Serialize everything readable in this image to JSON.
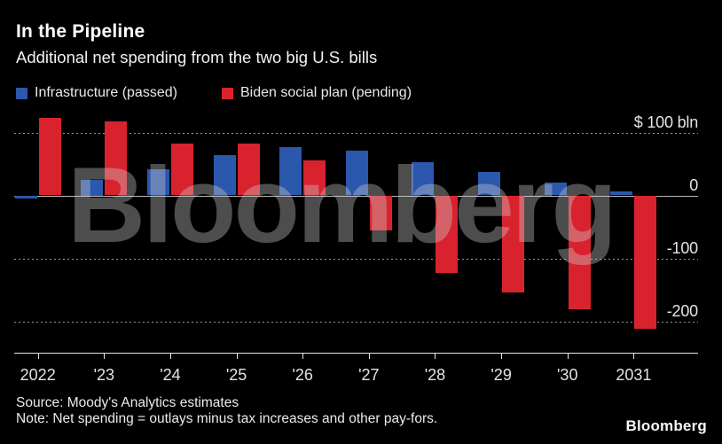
{
  "header": {
    "title": "In the Pipeline",
    "subtitle": "Additional net spending from the two big U.S. bills"
  },
  "legend": [
    {
      "label": "Infrastructure (passed)",
      "color": "#2b57ad"
    },
    {
      "label": "Biden social plan (pending)",
      "color": "#d8232e"
    }
  ],
  "chart_data": {
    "type": "bar",
    "title": "In the Pipeline",
    "subtitle": "Additional net spending from the two big U.S. bills",
    "unit": "$ bln",
    "categories": [
      "2022",
      "'23",
      "'24",
      "'25",
      "'26",
      "'27",
      "'28",
      "'29",
      "'30",
      "2031"
    ],
    "series": [
      {
        "name": "Infrastructure (passed)",
        "color": "#2b57ad",
        "values": [
          -5,
          25,
          42,
          64,
          77,
          71,
          53,
          38,
          21,
          6
        ]
      },
      {
        "name": "Biden social plan (pending)",
        "color": "#d8232e",
        "values": [
          123,
          117,
          83,
          82,
          56,
          -55,
          -123,
          -154,
          -181,
          -212
        ]
      }
    ],
    "y_axis": {
      "range": [
        -240,
        140
      ],
      "ticks": [
        {
          "label": "$ 100 bln",
          "value": 100,
          "style": "dotted"
        },
        {
          "label": "0",
          "value": 0,
          "style": "solid"
        },
        {
          "label": "-100",
          "value": -100,
          "style": "dotted"
        },
        {
          "label": "-200",
          "value": -200,
          "style": "dotted"
        }
      ]
    },
    "legend_position": "top-left",
    "grid": "horizontal-dotted"
  },
  "watermark": "Bloomberg",
  "footer": {
    "source": "Source: Moody's Analytics estimates",
    "note": "Note: Net spending = outlays minus tax increases and other pay-fors.",
    "logo": "Bloomberg"
  }
}
